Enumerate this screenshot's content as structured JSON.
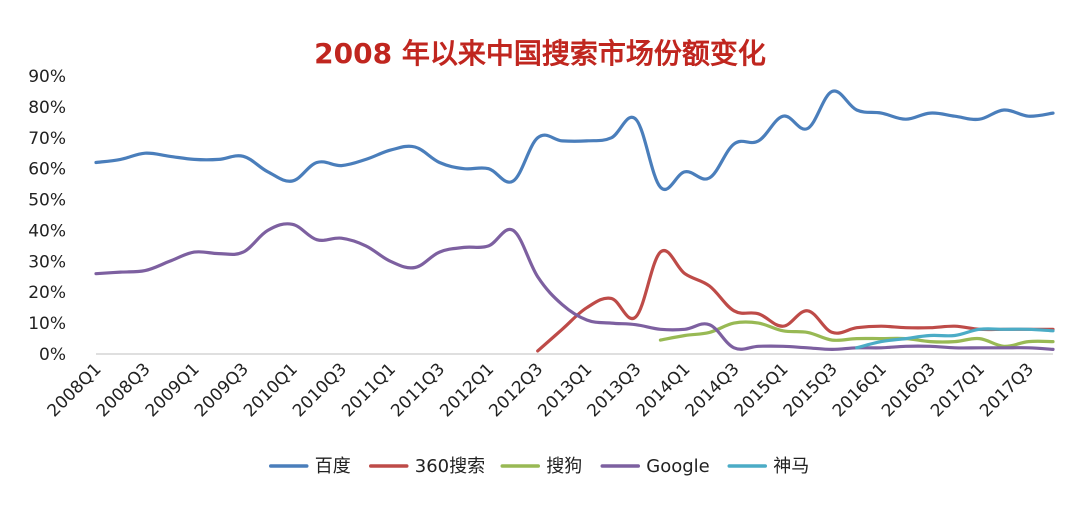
{
  "chart_data": {
    "type": "line",
    "title": "2008 年以来中国搜索市场份额变化",
    "xlabel": "",
    "ylabel": "",
    "ylim": [
      0,
      90
    ],
    "y_ticks": [
      "0%",
      "10%",
      "20%",
      "30%",
      "40%",
      "50%",
      "60%",
      "70%",
      "80%",
      "90%"
    ],
    "grid": false,
    "legend_position": "bottom",
    "categories": [
      "2008Q1",
      "2008Q2",
      "2008Q3",
      "2008Q4",
      "2009Q1",
      "2009Q2",
      "2009Q3",
      "2009Q4",
      "2010Q1",
      "2010Q2",
      "2010Q3",
      "2010Q4",
      "2011Q1",
      "2011Q2",
      "2011Q3",
      "2011Q4",
      "2012Q1",
      "2012Q2",
      "2012Q3",
      "2012Q4",
      "2013Q1",
      "2013Q2",
      "2013Q3",
      "2013Q4",
      "2014Q1",
      "2014Q2",
      "2014Q3",
      "2014Q4",
      "2015Q1",
      "2015Q2",
      "2015Q3",
      "2015Q4",
      "2016Q1",
      "2016Q2",
      "2016Q3",
      "2016Q4",
      "2017Q1",
      "2017Q2",
      "2017Q3",
      "2017Q4"
    ],
    "x_tick_labels": [
      "2008Q1",
      "2008Q3",
      "2009Q1",
      "2009Q3",
      "2010Q1",
      "2010Q3",
      "2011Q1",
      "2011Q3",
      "2012Q1",
      "2012Q3",
      "2013Q1",
      "2013Q3",
      "2014Q1",
      "2014Q3",
      "2015Q1",
      "2015Q3",
      "2016Q1",
      "2016Q3",
      "2017Q1",
      "2017Q3"
    ],
    "series": [
      {
        "name": "百度",
        "color": "#4a7ebb",
        "values": [
          62,
          63,
          65,
          64,
          63,
          63,
          64,
          59,
          56,
          62,
          61,
          63,
          66,
          67,
          62,
          60,
          60,
          56,
          70,
          69,
          69,
          70,
          76,
          54,
          59,
          57,
          68,
          69,
          77,
          73,
          85,
          79,
          78,
          76,
          78,
          77,
          76,
          79,
          77,
          78
        ]
      },
      {
        "name": "360搜索",
        "color": "#be4b48",
        "values": [
          null,
          null,
          null,
          null,
          null,
          null,
          null,
          null,
          null,
          null,
          null,
          null,
          null,
          null,
          null,
          null,
          null,
          null,
          1,
          8,
          15,
          18,
          12,
          33,
          26,
          22,
          14,
          13,
          9,
          14,
          7,
          8.5,
          9,
          8.5,
          8.5,
          9,
          8,
          8,
          8,
          8
        ]
      },
      {
        "name": "搜狗",
        "color": "#98b954",
        "values": [
          null,
          null,
          null,
          null,
          null,
          null,
          null,
          null,
          null,
          null,
          null,
          null,
          null,
          null,
          null,
          null,
          null,
          null,
          null,
          null,
          null,
          null,
          null,
          4.5,
          6,
          7,
          10,
          10,
          7.5,
          7,
          4.5,
          5,
          5,
          5,
          4,
          4,
          5,
          2.5,
          4,
          4
        ]
      },
      {
        "name": "Google",
        "color": "#7d60a0",
        "values": [
          26,
          26.5,
          27,
          30,
          33,
          32.5,
          33,
          40,
          42,
          37,
          37.5,
          35,
          30,
          28,
          33,
          34.5,
          35,
          40,
          25,
          16,
          11,
          10,
          9.5,
          8,
          8,
          9.5,
          2,
          2.5,
          2.5,
          2,
          1.5,
          2,
          2,
          2.5,
          2.5,
          2,
          2,
          2,
          2,
          1.5
        ]
      },
      {
        "name": "神马",
        "color": "#4bacc6",
        "values": [
          null,
          null,
          null,
          null,
          null,
          null,
          null,
          null,
          null,
          null,
          null,
          null,
          null,
          null,
          null,
          null,
          null,
          null,
          null,
          null,
          null,
          null,
          null,
          null,
          null,
          null,
          null,
          null,
          null,
          null,
          null,
          2,
          4,
          5,
          6,
          6,
          8,
          8,
          8,
          7.5
        ]
      }
    ]
  }
}
